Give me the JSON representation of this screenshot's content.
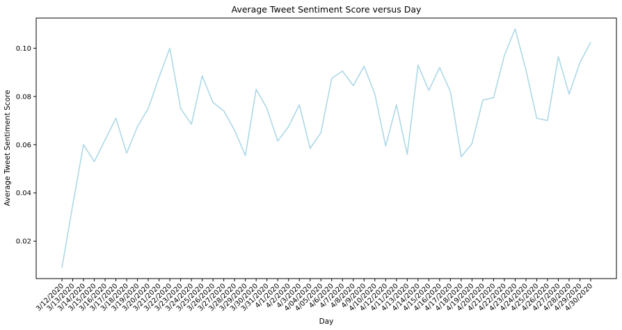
{
  "chart_data": {
    "type": "line",
    "title": "Average Tweet Sentiment Score versus Day",
    "xlabel": "Day",
    "ylabel": "Average Tweet Sentiment Score",
    "x": [
      "3/12/2020",
      "3/13/2020",
      "3/14/2020",
      "3/15/2020",
      "3/16/2020",
      "3/17/2020",
      "3/18/2020",
      "3/19/2020",
      "3/20/2020",
      "3/21/2020",
      "3/22/2020",
      "3/23/2020",
      "3/24/2020",
      "3/25/2020",
      "3/26/2020",
      "3/27/2020",
      "3/28/2020",
      "3/29/2020",
      "3/30/2020",
      "3/31/2020",
      "4/1/2020",
      "4/2/2020",
      "4/3/2020",
      "4/04/2020",
      "4/05/2020",
      "4/6/2020",
      "4/7/2020",
      "4/8/2020",
      "4/9/2020",
      "4/10/2020",
      "4/12/2020",
      "4/11/2020",
      "4/13/2020",
      "4/14/2020",
      "4/15/2020",
      "4/16/2020",
      "4/17/2020",
      "4/18/2020",
      "4/19/2020",
      "4/20/2020",
      "4/21/2020",
      "4/22/2020",
      "4/23/2020",
      "4/24/2020",
      "4/25/2020",
      "4/26/2020",
      "4/27/2020",
      "4/28/2020",
      "4/29/2020",
      "4/30/2020"
    ],
    "series": [
      {
        "values": [
          0.009,
          0.035,
          0.06,
          0.053,
          0.062,
          0.071,
          0.0565,
          0.0675,
          0.075,
          0.088,
          0.1,
          0.075,
          0.0685,
          0.0885,
          0.0775,
          0.074,
          0.066,
          0.0555,
          0.083,
          0.075,
          0.0615,
          0.0675,
          0.0765,
          0.0585,
          0.065,
          0.0875,
          0.0905,
          0.0845,
          0.0925,
          0.081,
          0.0595,
          0.0765,
          0.056,
          0.093,
          0.0825,
          0.092,
          0.082,
          0.055,
          0.0605,
          0.0785,
          0.0795,
          0.097,
          0.108,
          0.091,
          0.071,
          0.07,
          0.0965,
          0.081,
          0.094,
          0.1025
        ]
      }
    ],
    "yticks": [
      "0.02",
      "0.04",
      "0.06",
      "0.08",
      "0.10"
    ],
    "yticks_values": [
      0.02,
      0.04,
      0.06,
      0.08,
      0.1
    ],
    "ylim": [
      0.0045,
      0.1125
    ],
    "grid": false,
    "line_color": "#add8e6"
  }
}
